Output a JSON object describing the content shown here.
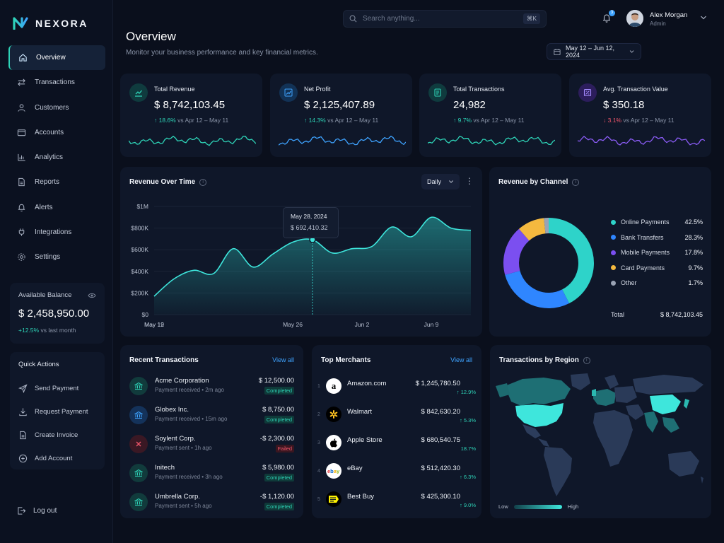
{
  "app": {
    "name": "NEXORA"
  },
  "sidebar": {
    "items": [
      {
        "label": "Overview",
        "icon": "home-icon"
      },
      {
        "label": "Transactions",
        "icon": "arrows-icon"
      },
      {
        "label": "Customers",
        "icon": "user-icon"
      },
      {
        "label": "Accounts",
        "icon": "wallet-icon"
      },
      {
        "label": "Analytics",
        "icon": "bar-chart-icon"
      },
      {
        "label": "Reports",
        "icon": "document-icon"
      },
      {
        "label": "Alerts",
        "icon": "bell-icon"
      },
      {
        "label": "Integrations",
        "icon": "plug-icon"
      },
      {
        "label": "Settings",
        "icon": "gear-icon"
      }
    ],
    "balance": {
      "label": "Available Balance",
      "value": "$ 2,458,950.00",
      "change": "+12.5%",
      "change_note": "vs last month"
    },
    "quick_actions": {
      "title": "Quick Actions",
      "items": [
        "Send Payment",
        "Request Payment",
        "Create Invoice",
        "Add Account"
      ]
    },
    "logout": "Log out"
  },
  "topbar": {
    "search_placeholder": "Search anything...",
    "shortcut": "⌘K",
    "notification_count": "3",
    "user_name": "Alex Morgan",
    "user_role": "Admin"
  },
  "header": {
    "title": "Overview",
    "subtitle": "Monitor your business performance and key financial metrics.",
    "date_range": "May 12 – Jun 12, 2024"
  },
  "kpis": [
    {
      "label": "Total Revenue",
      "value": "$ 8,742,103.45",
      "change": "↑ 18.6%",
      "note": "vs Apr 12 – May 11",
      "up": true,
      "color": "#2ed3b7"
    },
    {
      "label": "Net Profit",
      "value": "$ 2,125,407.89",
      "change": "↑ 14.3%",
      "note": "vs Apr 12 – May 11",
      "up": true,
      "color": "#3ea3ff"
    },
    {
      "label": "Total Transactions",
      "value": "24,982",
      "change": "↑ 9.7%",
      "note": "vs Apr 12 – May 11",
      "up": true,
      "color": "#2ed3b7"
    },
    {
      "label": "Avg. Transaction Value",
      "value": "$ 350.18",
      "change": "↓ 3.1%",
      "note": "vs Apr 12 – May 11",
      "up": false,
      "color": "#8b5cf6"
    }
  ],
  "revenue_chart": {
    "title": "Revenue Over Time",
    "period": "Daily",
    "tooltip_date": "May 28, 2024",
    "tooltip_value": "$ 692,410.32",
    "y_ticks": [
      "$1M",
      "$800K",
      "$600K",
      "$400K",
      "$200K",
      "$0"
    ],
    "x_ticks": [
      "May 12",
      "May 19",
      "May 26",
      "Jun 2",
      "Jun 9"
    ]
  },
  "channel_chart": {
    "title": "Revenue by Channel",
    "total_label": "Total",
    "total_value": "$ 8,742,103.45"
  },
  "recent": {
    "title": "Recent Transactions",
    "view_all": "View all",
    "rows": [
      {
        "name": "Acme Corporation",
        "sub": "Payment received • 2m ago",
        "amount": "$ 12,500.00",
        "status": "Completed",
        "ok": true
      },
      {
        "name": "Globex Inc.",
        "sub": "Payment received • 15m ago",
        "amount": "$ 8,750.00",
        "status": "Completed",
        "ok": true
      },
      {
        "name": "Soylent Corp.",
        "sub": "Payment sent • 1h ago",
        "amount": "-$ 2,300.00",
        "status": "Failed",
        "ok": false
      },
      {
        "name": "Initech",
        "sub": "Payment received • 3h ago",
        "amount": "$ 5,980.00",
        "status": "Completed",
        "ok": true
      },
      {
        "name": "Umbrella Corp.",
        "sub": "Payment sent • 5h ago",
        "amount": "-$ 1,120.00",
        "status": "Completed",
        "ok": true
      }
    ]
  },
  "merchants": {
    "title": "Top Merchants",
    "view_all": "View all",
    "rows": [
      {
        "rank": "1",
        "name": "Amazon.com",
        "amount": "$ 1,245,780.50",
        "change": "↑ 12.9%"
      },
      {
        "rank": "2",
        "name": "Walmart",
        "amount": "$ 842,630.20",
        "change": "↑ 5.3%"
      },
      {
        "rank": "3",
        "name": "Apple Store",
        "amount": "$ 680,540.75",
        "change": "18.7%"
      },
      {
        "rank": "4",
        "name": "eBay",
        "amount": "$ 512,420.30",
        "change": "↑ 6.3%"
      },
      {
        "rank": "5",
        "name": "Best Buy",
        "amount": "$ 425,300.10",
        "change": "↑ 9.0%"
      }
    ]
  },
  "region": {
    "title": "Transactions by Region",
    "low": "Low",
    "high": "High"
  },
  "chart_data": [
    {
      "type": "line",
      "title": "Revenue Over Time",
      "x": [
        "May 12",
        "May 14",
        "May 16",
        "May 18",
        "May 20",
        "May 22",
        "May 24",
        "May 26",
        "May 28",
        "May 30",
        "Jun 1",
        "Jun 3",
        "Jun 5",
        "Jun 7",
        "Jun 9",
        "Jun 11",
        "Jun 12"
      ],
      "values": [
        170000,
        330000,
        410000,
        380000,
        610000,
        440000,
        560000,
        670000,
        692410,
        570000,
        610000,
        630000,
        810000,
        720000,
        900000,
        800000,
        780000
      ],
      "ylim": [
        0,
        1000000
      ]
    },
    {
      "type": "pie",
      "title": "Revenue by Channel",
      "labels": [
        "Online Payments",
        "Bank Transfers",
        "Mobile Payments",
        "Card Payments",
        "Other"
      ],
      "values": [
        42.5,
        28.3,
        17.8,
        9.7,
        1.7
      ],
      "display_values": [
        "42.5%",
        "28.3%",
        "17.8%",
        "9.7%",
        "1.7%"
      ],
      "colors": [
        "#2ed3c9",
        "#2f86ff",
        "#7b4ff0",
        "#f4b93f",
        "#9aa3b4"
      ]
    }
  ]
}
